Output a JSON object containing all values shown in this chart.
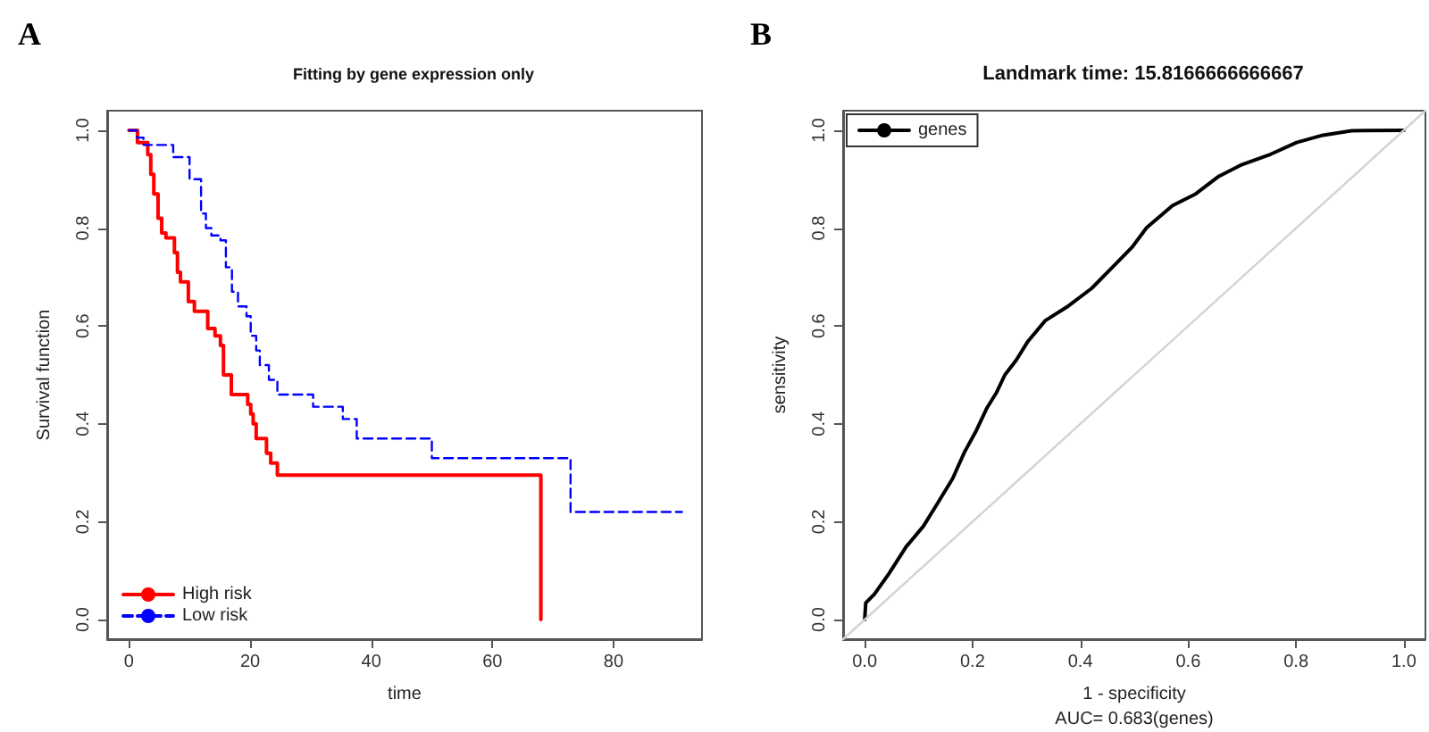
{
  "chart_data": [
    {
      "type": "step",
      "title": "Fitting by gene expression only",
      "xlabel": "time",
      "ylabel": "Survival function",
      "annotations": [
        "A"
      ],
      "xlim": [
        -3.6,
        94.6
      ],
      "ylim": [
        -0.04,
        1.04
      ],
      "xticks": [
        0,
        20,
        40,
        60,
        80
      ],
      "yticks": [
        {
          "value": 0,
          "label": "0.0"
        },
        {
          "value": 0.2,
          "label": "0.2"
        },
        {
          "value": 0.4,
          "label": "0.4"
        },
        {
          "value": 0.6,
          "label": "0.6"
        },
        {
          "value": 0.8,
          "label": "0.8"
        },
        {
          "value": 1,
          "label": "1.0"
        }
      ],
      "grid": false,
      "legend": "bottom left",
      "marker": "none",
      "series": [
        {
          "name": "High risk",
          "color": "#ff0000",
          "line_style": "solid",
          "x": [
            0,
            1.4,
            3.1,
            3.6,
            4.1,
            4.8,
            5.4,
            6.1,
            7.5,
            8.0,
            8.5,
            9.8,
            10.8,
            11.2,
            13.0,
            14.2,
            15.1,
            15.6,
            16.9,
            19.6,
            20.1,
            20.5,
            21.0,
            22.7,
            23.4,
            24.5,
            68.0
          ],
          "values": [
            1.0,
            0.975,
            0.95,
            0.91,
            0.87,
            0.82,
            0.79,
            0.78,
            0.75,
            0.71,
            0.69,
            0.65,
            0.63,
            0.63,
            0.595,
            0.58,
            0.56,
            0.5,
            0.46,
            0.44,
            0.42,
            0.4,
            0.37,
            0.34,
            0.32,
            0.295,
            0
          ]
        },
        {
          "name": "Low risk",
          "color": "#0000ff",
          "line_style": "dashed",
          "x": [
            0,
            1.3,
            2.4,
            7.3,
            10.0,
            11.9,
            12.7,
            13.6,
            15.1,
            16.0,
            17.0,
            18.0,
            19.4,
            20.1,
            21.0,
            21.6,
            23.1,
            24.5,
            30.4,
            35.3,
            37.6,
            50.0,
            72.9,
            91.3
          ],
          "values": [
            1.0,
            0.985,
            0.97,
            0.945,
            0.9,
            0.83,
            0.8,
            0.785,
            0.775,
            0.72,
            0.67,
            0.64,
            0.62,
            0.58,
            0.55,
            0.52,
            0.49,
            0.46,
            0.435,
            0.41,
            0.37,
            0.33,
            0.22,
            0.22
          ]
        }
      ]
    },
    {
      "type": "line",
      "title": "Landmark time: 15.8166666666667",
      "xlabel": "1 - specificity",
      "ylabel": "sensitivity",
      "annotations": [
        "B",
        "AUC= 0.683(genes)"
      ],
      "xlim": [
        -0.04,
        1.04
      ],
      "ylim": [
        -0.04,
        1.04
      ],
      "xticks": [
        {
          "value": 0,
          "label": "0.0"
        },
        {
          "value": 0.2,
          "label": "0.2"
        },
        {
          "value": 0.4,
          "label": "0.4"
        },
        {
          "value": 0.6,
          "label": "0.6"
        },
        {
          "value": 0.8,
          "label": "0.8"
        },
        {
          "value": 1,
          "label": "1.0"
        }
      ],
      "yticks": [
        {
          "value": 0,
          "label": "0.0"
        },
        {
          "value": 0.2,
          "label": "0.2"
        },
        {
          "value": 0.4,
          "label": "0.4"
        },
        {
          "value": 0.6,
          "label": "0.6"
        },
        {
          "value": 0.8,
          "label": "0.8"
        },
        {
          "value": 1,
          "label": "1.0"
        }
      ],
      "grid": false,
      "legend": "top left",
      "marker": "none",
      "series": [
        {
          "name": "genes",
          "color": "#000000",
          "line_style": "solid",
          "x": [
            0,
            0.002,
            0.018,
            0.045,
            0.077,
            0.109,
            0.136,
            0.163,
            0.185,
            0.206,
            0.227,
            0.244,
            0.26,
            0.281,
            0.303,
            0.335,
            0.378,
            0.421,
            0.464,
            0.496,
            0.523,
            0.571,
            0.614,
            0.657,
            0.7,
            0.753,
            0.801,
            0.85,
            0.903,
            1.0
          ],
          "values": [
            0,
            0.034,
            0.052,
            0.094,
            0.149,
            0.191,
            0.239,
            0.288,
            0.342,
            0.384,
            0.433,
            0.463,
            0.5,
            0.53,
            0.569,
            0.611,
            0.641,
            0.677,
            0.725,
            0.761,
            0.801,
            0.846,
            0.87,
            0.906,
            0.93,
            0.951,
            0.975,
            0.99,
            0.999,
            1.0
          ]
        },
        {
          "color": "#d3d3d3",
          "line_style": "solid",
          "x": [
            -0.04,
            1.04
          ],
          "values": [
            -0.04,
            1.04
          ]
        }
      ]
    }
  ]
}
